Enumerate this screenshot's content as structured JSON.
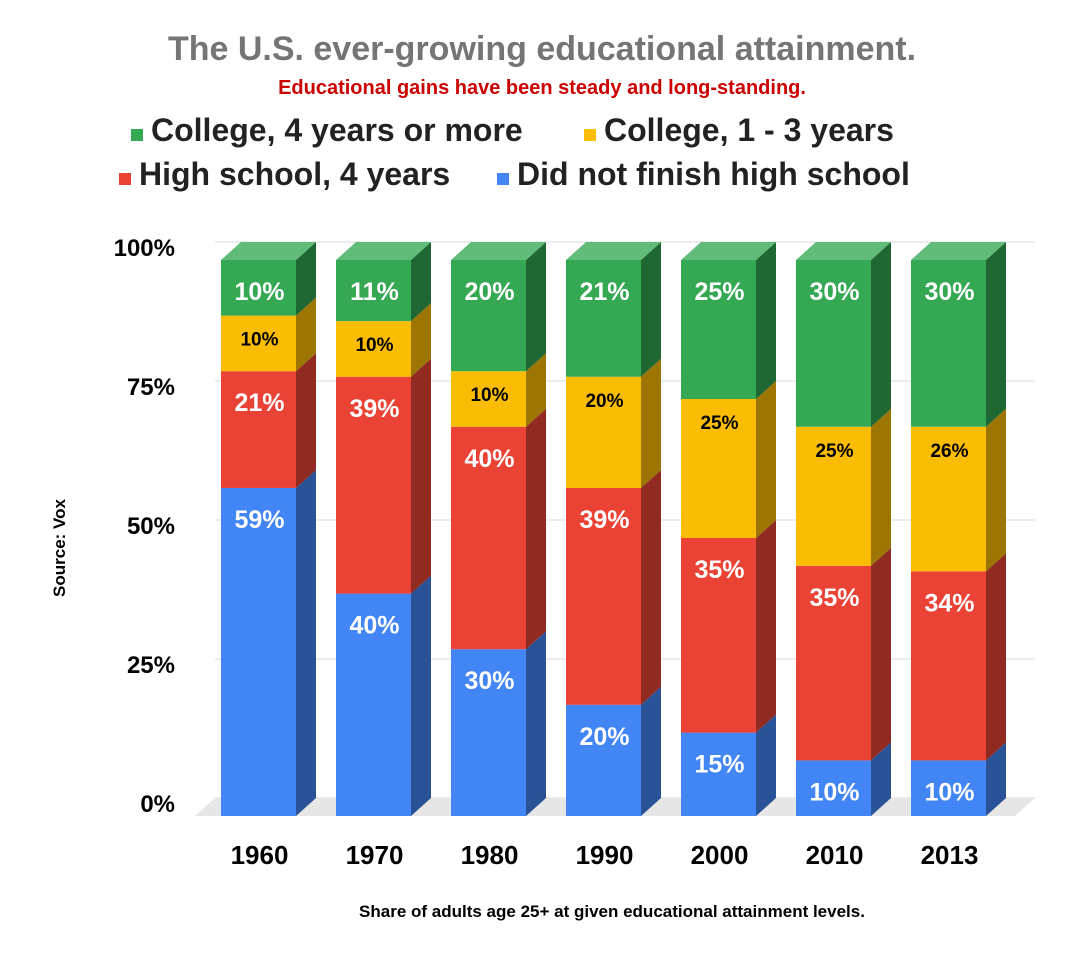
{
  "chart_data": {
    "type": "bar",
    "stacked": true,
    "title": "The U.S. ever-growing educational attainment.",
    "subtitle": "Educational gains have been steady and long-standing.",
    "xlabel": "Share of adults age 25+ at given educational attainment levels.",
    "ylabel": "Source: Vox",
    "ylim": [
      0,
      100
    ],
    "y_ticks": [
      "0%",
      "25%",
      "50%",
      "75%",
      "100%"
    ],
    "y_tick_values": [
      0,
      25,
      50,
      75,
      100
    ],
    "grid": true,
    "legend_position": "top",
    "categories": [
      "1960",
      "1970",
      "1980",
      "1990",
      "2000",
      "2010",
      "2013"
    ],
    "series": [
      {
        "name": "Did not finish high school",
        "color": "#4285f4",
        "values": [
          59,
          40,
          30,
          20,
          15,
          10,
          10
        ],
        "labels": [
          "59%",
          "40%",
          "30%",
          "20%",
          "15%",
          "10%",
          "10%"
        ]
      },
      {
        "name": "High school, 4 years",
        "color": "#ea4335",
        "values": [
          21,
          39,
          40,
          39,
          35,
          35,
          34
        ],
        "labels": [
          "21%",
          "39%",
          "40%",
          "39%",
          "35%",
          "35%",
          "34%"
        ]
      },
      {
        "name": "College, 1 - 3 years",
        "color": "#fbbc04",
        "values": [
          10,
          10,
          10,
          20,
          25,
          25,
          26
        ],
        "labels": [
          "10%",
          "10%",
          "10%",
          "20%",
          "25%",
          "25%",
          "26%"
        ]
      },
      {
        "name": "College, 4 years or more",
        "color": "#34a853",
        "values": [
          10,
          11,
          20,
          21,
          25,
          30,
          30
        ],
        "labels": [
          "10%",
          "11%",
          "20%",
          "21%",
          "25%",
          "30%",
          "30%"
        ]
      }
    ],
    "legend_order": [
      3,
      2,
      1,
      0
    ]
  },
  "colors": {
    "title": "#757575",
    "subtitle": "#cc0000",
    "text": "#000000",
    "grid": "#d9d9d9",
    "floor": "#e6e6e6"
  }
}
